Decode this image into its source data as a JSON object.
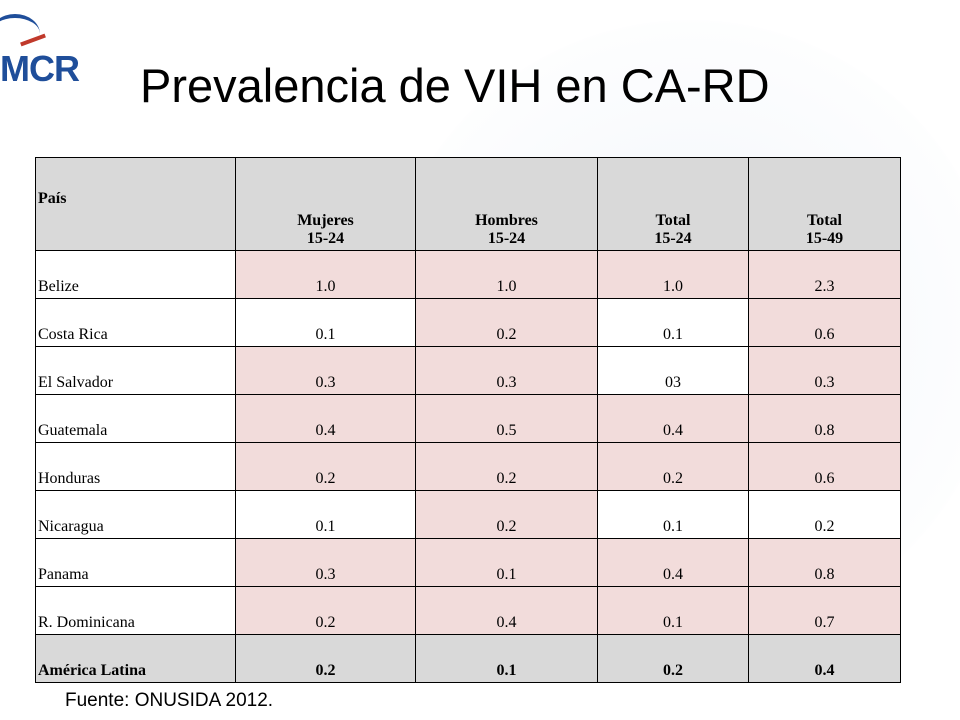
{
  "logo": {
    "text": "MCR"
  },
  "title": "Prevalencia de VIH en CA-RD",
  "table": {
    "header": [
      [
        "País"
      ],
      [
        "Mujeres",
        "15-24"
      ],
      [
        "Hombres",
        "15-24"
      ],
      [
        "Total",
        "15-24"
      ],
      [
        "Total",
        "15-49"
      ]
    ],
    "rows": [
      [
        "Belize",
        "1.0",
        "1.0",
        "1.0",
        "2.3"
      ],
      [
        "Costa Rica",
        "0.1",
        "0.2",
        "0.1",
        "0.6"
      ],
      [
        "El Salvador",
        "0.3",
        "0.3",
        "03",
        "0.3"
      ],
      [
        "Guatemala",
        "0.4",
        "0.5",
        "0.4",
        "0.8"
      ],
      [
        "Honduras",
        "0.2",
        "0.2",
        "0.2",
        "0.6"
      ],
      [
        "Nicaragua",
        "0.1",
        "0.2",
        "0.1",
        "0.2"
      ],
      [
        "Panama",
        "0.3",
        "0.1",
        "0.4",
        "0.8"
      ],
      [
        "R. Dominicana",
        "0.2",
        "0.4",
        "0.1",
        "0.7"
      ],
      [
        "América  Latina",
        "0.2",
        "0.1",
        "0.2",
        "0.4"
      ]
    ]
  },
  "source": "Fuente: ONUSIDA 2012."
}
